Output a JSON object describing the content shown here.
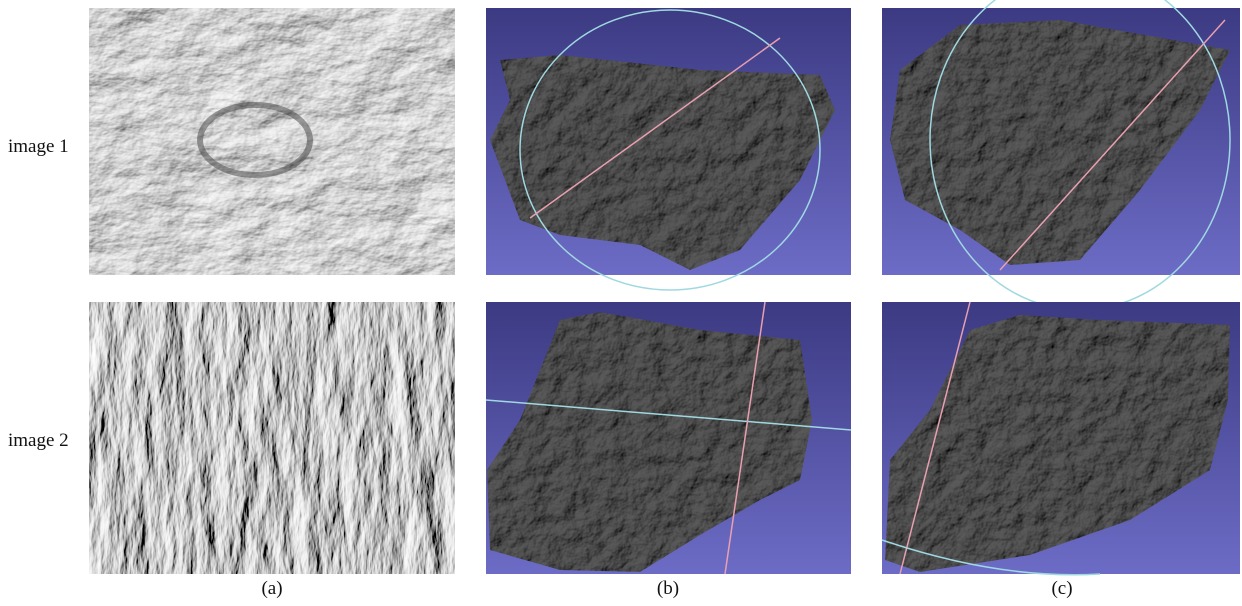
{
  "rows": [
    {
      "label": "image 1"
    },
    {
      "label": "image 2"
    }
  ],
  "columns": [
    {
      "label": "(a)"
    },
    {
      "label": "(b)"
    },
    {
      "label": "(c)"
    }
  ]
}
